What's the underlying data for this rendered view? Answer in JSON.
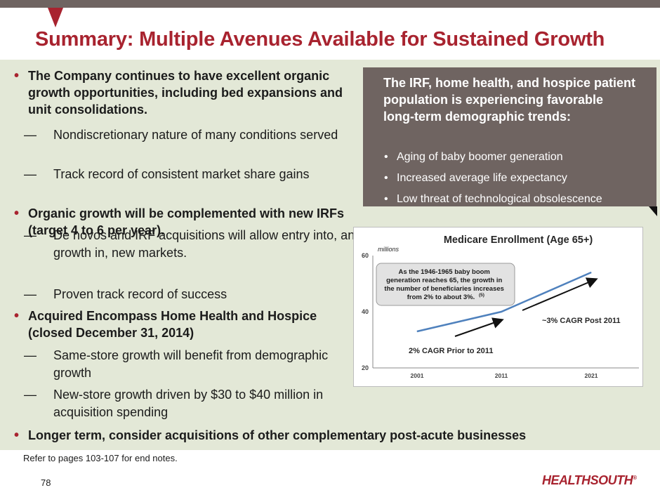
{
  "slide": {
    "title": "Summary: Multiple Avenues Available for Sustained Growth",
    "page_number": "78",
    "note": "Refer to pages 103-107 for end notes.",
    "logo": "HEALTHSOUTH",
    "logo_mark": "®"
  },
  "bullets": {
    "item1": "The Company continues to have excellent organic growth opportunities, including bed expansions and unit consolidations.",
    "item1_sub1": "Nondiscretionary nature of many conditions served",
    "item1_sub2": "Track record of consistent market share gains",
    "item2": "Organic growth will be complemented with new IRFs (target 4 to 6 per year).",
    "item2_sub1": "De novos and IRF acquisitions will allow entry into, and growth in, new markets.",
    "item2_sub2": "Proven track record of success",
    "item3": "Acquired Encompass Home Health and Hospice (closed December 31, 2014)",
    "item3_sub1": "Same-store growth will benefit from demographic growth",
    "item3_sub2": "New-store growth driven by $30 to $40 million in acquisition spending",
    "item4": "Longer term, consider acquisitions of other complementary post-acute businesses",
    "dash": "—"
  },
  "callout": {
    "title": "The IRF, home health, and hospice patient population is experiencing favorable long-term demographic trends:",
    "item1": "Aging of baby boomer generation",
    "item2": "Increased average life expectancy",
    "item3": "Low threat of technological obsolescence"
  },
  "chart_data": {
    "type": "line",
    "title": "Medicare Enrollment (Age 65+)",
    "unit_label": "millions",
    "x": [
      "2001",
      "2011",
      "2021"
    ],
    "y_ticks": [
      "20",
      "40",
      "60"
    ],
    "ylim": [
      20,
      60
    ],
    "series": [
      {
        "values": [
          33,
          40,
          54
        ],
        "color": "#4f81bd"
      }
    ],
    "grid": false,
    "annotations": {
      "box_text_lines": [
        "As the 1946-1965 baby boom",
        "generation reaches 65, the growth in",
        "the number of beneficiaries increases",
        "from 2% to about 3%."
      ],
      "box_footnote": "(5)",
      "cagr_before": "2% CAGR Prior to 2011",
      "cagr_after": "~3% CAGR Post 2011"
    }
  }
}
